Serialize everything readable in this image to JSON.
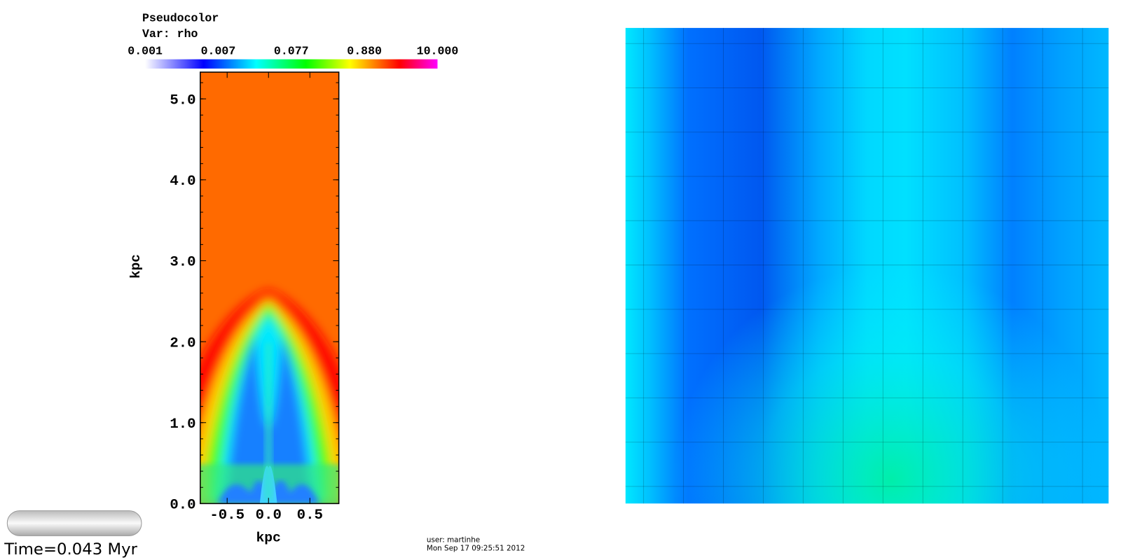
{
  "legend": {
    "title": "Pseudocolor",
    "variable": "Var: rho",
    "labels": [
      "0.001",
      "0.007",
      "0.077",
      "0.880",
      "10.000"
    ]
  },
  "plot": {
    "xlabel": "kpc",
    "ylabel": "kpc",
    "xlim": [
      -0.825,
      0.85
    ],
    "ylim": [
      0,
      5.33
    ],
    "xticks": [
      -0.5,
      {
        "value": 0,
        "label": "0.0"
      },
      0.5
    ],
    "yticks": [
      {
        "value": 0,
        "label": "0.0"
      },
      {
        "value": 1,
        "label": "1.0"
      },
      {
        "value": 2,
        "label": "2.0"
      },
      {
        "value": 3,
        "label": "3.0"
      },
      {
        "value": 4,
        "label": "4.0"
      },
      {
        "value": 5,
        "label": "5.0"
      }
    ]
  },
  "footer": {
    "user": "user: martinhe",
    "date": "Mon Sep 17 09:25:51 2012",
    "time": "Time=0.043 Myr"
  }
}
